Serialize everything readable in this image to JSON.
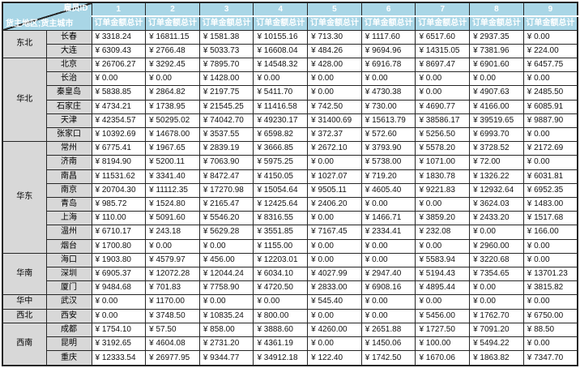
{
  "table": {
    "corner": {
      "top_right": "雇员ID",
      "bottom_left": "货主地区;货主城市"
    },
    "measure_label": "订单金额总计",
    "currency_prefix": "¥"
  },
  "colors": {
    "header_bg": "#a9d6e6",
    "header_text": "#ffffff",
    "row_header_bg": "#d8d8d8",
    "cell_bg": "#ffffff",
    "border": "#262626",
    "text": "#111111"
  },
  "chart_data": {
    "type": "table",
    "title": "",
    "column_dimension": "雇员ID",
    "row_dimensions": [
      "货主地区",
      "货主城市"
    ],
    "measure": "订单金额总计",
    "columns": [
      "1",
      "2",
      "3",
      "4",
      "5",
      "6",
      "7",
      "8",
      "9"
    ],
    "regions": [
      {
        "name": "东北",
        "cities": [
          {
            "name": "长春",
            "values": [
              3318.24,
              16811.15,
              1581.38,
              10155.16,
              713.3,
              1117.6,
              6517.6,
              2937.35,
              0.0
            ]
          },
          {
            "name": "大连",
            "values": [
              6309.43,
              2766.48,
              5033.73,
              16608.04,
              484.26,
              9694.96,
              14315.05,
              7381.96,
              224.0
            ]
          }
        ]
      },
      {
        "name": "华北",
        "cities": [
          {
            "name": "北京",
            "values": [
              26706.27,
              3292.45,
              7895.7,
              14548.32,
              428.0,
              6916.78,
              8697.47,
              6901.6,
              6457.75
            ]
          },
          {
            "name": "长治",
            "values": [
              0.0,
              0.0,
              1428.0,
              0.0,
              0.0,
              0.0,
              0.0,
              0.0,
              0.0
            ]
          },
          {
            "name": "秦皇岛",
            "values": [
              5838.85,
              2864.82,
              2197.75,
              5411.7,
              0.0,
              4730.38,
              0.0,
              4907.63,
              2485.5
            ]
          },
          {
            "name": "石家庄",
            "values": [
              4734.21,
              1738.95,
              21545.25,
              11416.58,
              742.5,
              730.0,
              4690.77,
              4166.0,
              6085.91
            ]
          },
          {
            "name": "天津",
            "values": [
              42354.57,
              50295.02,
              74042.7,
              49230.17,
              31400.69,
              15613.79,
              38586.17,
              39519.65,
              9887.9
            ]
          },
          {
            "name": "张家口",
            "values": [
              10392.69,
              14678.0,
              3537.55,
              6598.82,
              372.37,
              572.6,
              5256.5,
              6993.7,
              0.0
            ]
          }
        ]
      },
      {
        "name": "华东",
        "cities": [
          {
            "name": "常州",
            "values": [
              6775.41,
              1967.65,
              2839.19,
              3666.85,
              2672.1,
              3793.9,
              5578.2,
              3728.52,
              2172.69
            ]
          },
          {
            "name": "济南",
            "values": [
              8194.9,
              5200.11,
              7063.9,
              5975.25,
              0.0,
              5738.0,
              1071.0,
              72.0,
              0.0
            ]
          },
          {
            "name": "南昌",
            "values": [
              11531.62,
              3341.4,
              8472.47,
              4150.05,
              1027.07,
              719.2,
              1830.78,
              1326.22,
              6031.81
            ]
          },
          {
            "name": "南京",
            "values": [
              20704.3,
              11112.35,
              17270.98,
              15054.64,
              9505.11,
              4605.4,
              9221.83,
              12932.64,
              6952.35
            ]
          },
          {
            "name": "青岛",
            "values": [
              985.72,
              1524.8,
              2165.47,
              12425.64,
              2406.2,
              0.0,
              0.0,
              3624.03,
              1483.0
            ]
          },
          {
            "name": "上海",
            "values": [
              110.0,
              5091.6,
              5546.2,
              8316.55,
              0.0,
              1466.71,
              3859.2,
              2433.2,
              1517.68
            ]
          },
          {
            "name": "温州",
            "values": [
              6710.17,
              243.18,
              5629.28,
              3551.85,
              7167.45,
              2334.41,
              232.08,
              0.0,
              166.0
            ]
          },
          {
            "name": "烟台",
            "values": [
              1700.8,
              0.0,
              0.0,
              1155.0,
              0.0,
              0.0,
              0.0,
              2960.0,
              0.0
            ]
          }
        ]
      },
      {
        "name": "华南",
        "cities": [
          {
            "name": "海口",
            "values": [
              1903.8,
              4579.97,
              456.0,
              12203.01,
              0.0,
              0.0,
              5583.94,
              3220.68,
              0.0
            ]
          },
          {
            "name": "深圳",
            "values": [
              6905.37,
              12072.28,
              12044.24,
              6034.1,
              4027.99,
              2947.4,
              5194.43,
              7354.65,
              13701.23
            ]
          },
          {
            "name": "厦门",
            "values": [
              9484.68,
              701.83,
              7758.9,
              4720.5,
              2833.0,
              6908.16,
              4895.44,
              0.0,
              3815.82
            ]
          }
        ]
      },
      {
        "name": "华中",
        "cities": [
          {
            "name": "武汉",
            "values": [
              0.0,
              1170.0,
              0.0,
              0.0,
              545.4,
              0.0,
              0.0,
              0.0,
              0.0
            ]
          }
        ]
      },
      {
        "name": "西北",
        "cities": [
          {
            "name": "西安",
            "values": [
              0.0,
              3748.5,
              10835.24,
              800.0,
              0.0,
              0.0,
              5456.0,
              1762.7,
              6750.0
            ]
          }
        ]
      },
      {
        "name": "西南",
        "cities": [
          {
            "name": "成都",
            "values": [
              1754.1,
              57.5,
              858.0,
              3888.6,
              4260.0,
              2651.88,
              1727.5,
              7091.2,
              88.5
            ]
          },
          {
            "name": "昆明",
            "values": [
              3192.65,
              4604.08,
              2731.2,
              4361.19,
              0.0,
              1450.06,
              100.0,
              5494.22,
              0.0
            ]
          },
          {
            "name": "重庆",
            "values": [
              12333.54,
              26977.95,
              9344.77,
              34912.18,
              122.4,
              1742.5,
              1670.06,
              1863.82,
              7347.7
            ]
          }
        ]
      }
    ]
  }
}
